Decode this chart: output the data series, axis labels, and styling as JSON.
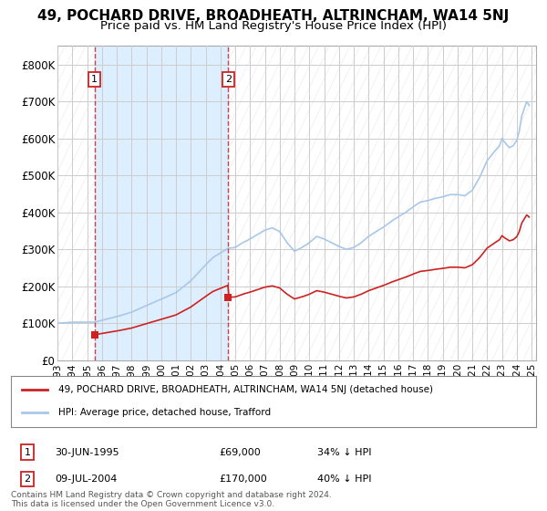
{
  "title": "49, POCHARD DRIVE, BROADHEATH, ALTRINCHAM, WA14 5NJ",
  "subtitle": "Price paid vs. HM Land Registry's House Price Index (HPI)",
  "title_fontsize": 11,
  "subtitle_fontsize": 9.5,
  "ylabel_ticks": [
    "£0",
    "£100K",
    "£200K",
    "£300K",
    "£400K",
    "£500K",
    "£600K",
    "£700K",
    "£800K"
  ],
  "ytick_values": [
    0,
    100000,
    200000,
    300000,
    400000,
    500000,
    600000,
    700000,
    800000
  ],
  "ylim": [
    0,
    850000
  ],
  "xlim_start": 1993.0,
  "xlim_end": 2025.3,
  "xtick_years": [
    1993,
    1994,
    1995,
    1996,
    1997,
    1998,
    1999,
    2000,
    2001,
    2002,
    2003,
    2004,
    2005,
    2006,
    2007,
    2008,
    2009,
    2010,
    2011,
    2012,
    2013,
    2014,
    2015,
    2016,
    2017,
    2018,
    2019,
    2020,
    2021,
    2022,
    2023,
    2024,
    2025
  ],
  "hpi_color": "#a8c8e8",
  "price_color": "#cc2222",
  "marker_color": "#cc2222",
  "marker1_x": 1995.5,
  "marker1_y": 69000,
  "marker2_x": 2004.53,
  "marker2_y": 170000,
  "vline1_x": 1995.5,
  "vline2_x": 2004.53,
  "shade_color": "#ddeeff",
  "legend_label_price": "49, POCHARD DRIVE, BROADHEATH, ALTRINCHAM, WA14 5NJ (detached house)",
  "legend_label_hpi": "HPI: Average price, detached house, Trafford",
  "table_row1": [
    "1",
    "30-JUN-1995",
    "£69,000",
    "34% ↓ HPI"
  ],
  "table_row2": [
    "2",
    "09-JUL-2004",
    "£170,000",
    "40% ↓ HPI"
  ],
  "footer": "Contains HM Land Registry data © Crown copyright and database right 2024.\nThis data is licensed under the Open Government Licence v3.0.",
  "bg_color": "#ffffff",
  "grid_color": "#cccccc",
  "hatch_color": "#e8e8e8"
}
